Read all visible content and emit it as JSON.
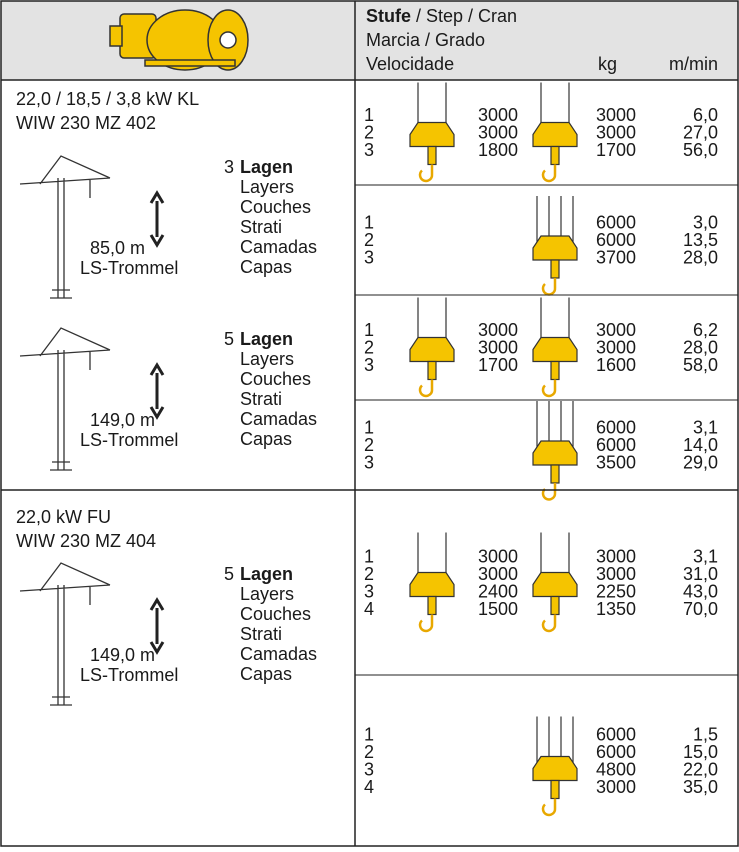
{
  "header": {
    "stufe": "Stufe",
    "stufe_rest": "/ Step / Cran",
    "line2": "Marcia / Grado",
    "line3": "Velocidade",
    "kg": "kg",
    "speed": "m/min"
  },
  "sections": [
    {
      "title": [
        "22,0 / 18,5 / 3,8 kW KL",
        "WIW 230 MZ 402"
      ],
      "drums": [
        {
          "layers": "3",
          "lagen": "Lagen",
          "names": [
            "Layers",
            "Couches",
            "Strati",
            "Camadas",
            "Capas"
          ],
          "height": "85,0 m",
          "drum": "LS-Trommel"
        },
        {
          "layers": "5",
          "lagen": "Lagen",
          "names": [
            "Layers",
            "Couches",
            "Strati",
            "Camadas",
            "Capas"
          ],
          "height": "149,0 m",
          "drum": "LS-Trommel"
        }
      ],
      "blocks": [
        {
          "steps": [
            "1",
            "2",
            "3"
          ],
          "kg_a": [
            "3000",
            "3000",
            "1800"
          ],
          "kg_b": [
            "3000",
            "3000",
            "1700"
          ],
          "speed": [
            "6,0",
            "27,0",
            "56,0"
          ]
        },
        {
          "steps": [
            "1",
            "2",
            "3"
          ],
          "kg_b": [
            "6000",
            "6000",
            "3700"
          ],
          "speed": [
            "3,0",
            "13,5",
            "28,0"
          ]
        },
        {
          "steps": [
            "1",
            "2",
            "3"
          ],
          "kg_a": [
            "3000",
            "3000",
            "1700"
          ],
          "kg_b": [
            "3000",
            "3000",
            "1600"
          ],
          "speed": [
            "6,2",
            "28,0",
            "58,0"
          ]
        },
        {
          "steps": [
            "1",
            "2",
            "3"
          ],
          "kg_b": [
            "6000",
            "6000",
            "3500"
          ],
          "speed": [
            "3,1",
            "14,0",
            "29,0"
          ]
        }
      ]
    },
    {
      "title": [
        "22,0 kW FU",
        "WIW 230 MZ 404"
      ],
      "drums": [
        {
          "layers": "5",
          "lagen": "Lagen",
          "names": [
            "Layers",
            "Couches",
            "Strati",
            "Camadas",
            "Capas"
          ],
          "height": "149,0 m",
          "drum": "LS-Trommel"
        }
      ],
      "blocks": [
        {
          "steps": [
            "1",
            "2",
            "3",
            "4"
          ],
          "kg_a": [
            "3000",
            "3000",
            "2400",
            "1500"
          ],
          "kg_b": [
            "3000",
            "3000",
            "2250",
            "1350"
          ],
          "speed": [
            "3,1",
            "31,0",
            "43,0",
            "70,0"
          ]
        },
        {
          "steps": [
            "1",
            "2",
            "3",
            "4"
          ],
          "kg_b": [
            "6000",
            "6000",
            "4800",
            "3000"
          ],
          "speed": [
            "1,5",
            "15,0",
            "22,0",
            "35,0"
          ]
        }
      ]
    }
  ]
}
